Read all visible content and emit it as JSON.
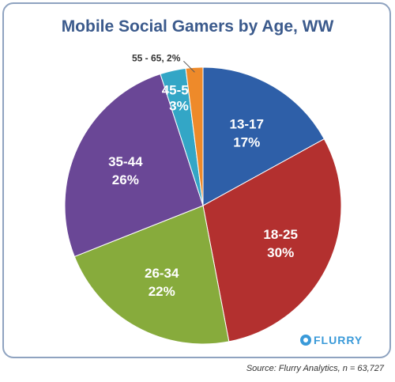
{
  "chart_data": {
    "type": "pie",
    "title": "Mobile Social Gamers by Age, WW",
    "categories": [
      "13-17",
      "18-25",
      "26-34",
      "35-44",
      "45-54",
      "55 - 65"
    ],
    "values": [
      17,
      30,
      22,
      26,
      3,
      2
    ],
    "value_labels": [
      "17%",
      "30%",
      "22%",
      "26%",
      "3%",
      "2%"
    ],
    "outside_label": "55 - 65, 2%",
    "colors": [
      "#2e5fa8",
      "#b3302f",
      "#87ab3c",
      "#6a4796",
      "#33a6c6",
      "#ee8a2a"
    ],
    "legend": "none"
  },
  "source": "Source: Flurry Analytics, n = 63,727",
  "logo": {
    "text": "FLURRY",
    "icon": "flurry-logo-icon"
  }
}
